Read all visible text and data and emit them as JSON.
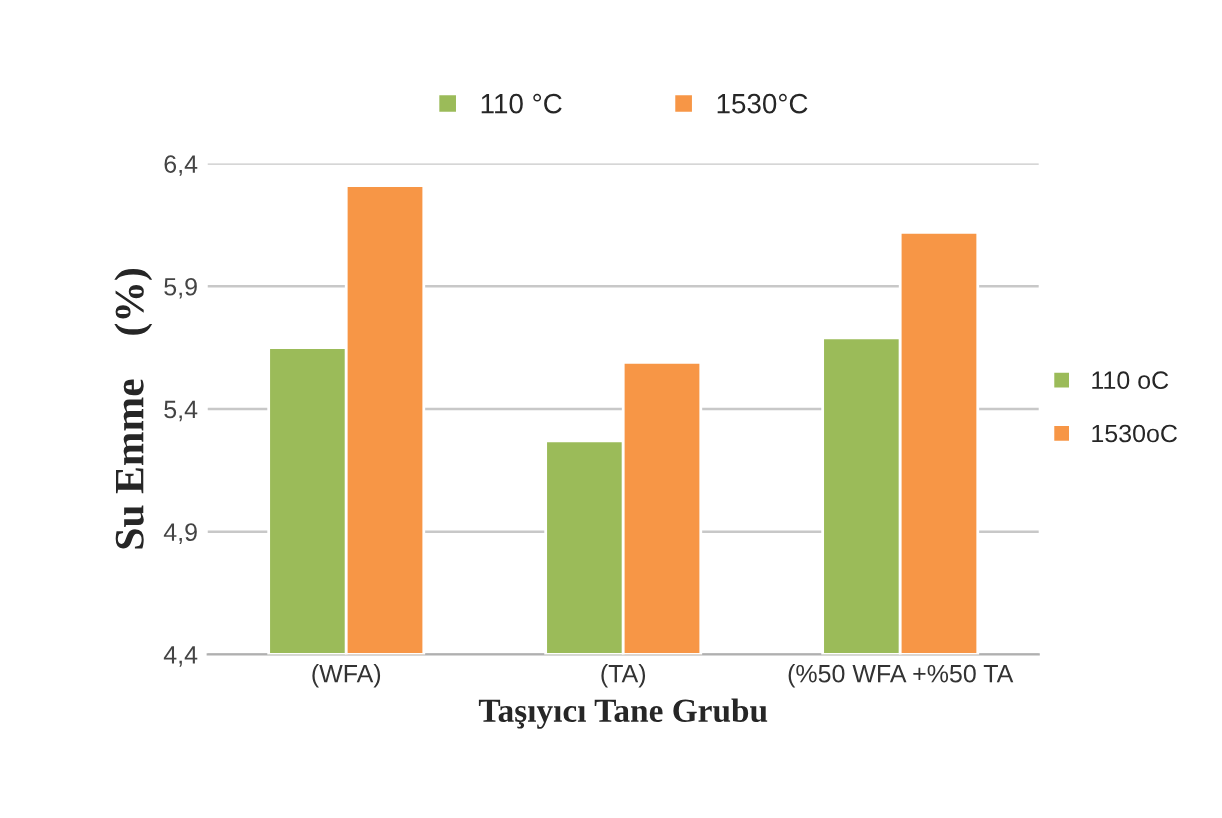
{
  "chart_data": {
    "type": "bar",
    "xlabel": "Taşıyıcı Tane Grubu",
    "ylabel": "Su Emme    (%)",
    "categories": [
      "(WFA)",
      "(TA)",
      "(%50 WFA +%50 TA"
    ],
    "series": [
      {
        "name": "110 °C",
        "color": "#9bbb59",
        "values": [
          5.65,
          5.27,
          5.69
        ]
      },
      {
        "name": "1530°C",
        "color": "#f79646",
        "values": [
          6.31,
          5.59,
          6.12
        ]
      }
    ],
    "ylim": [
      4.4,
      6.4
    ],
    "yticks": [
      {
        "value": 4.4,
        "label": "4,4"
      },
      {
        "value": 4.9,
        "label": "4,9"
      },
      {
        "value": 5.4,
        "label": "5,4"
      },
      {
        "value": 5.9,
        "label": "5,9"
      },
      {
        "value": 6.4,
        "label": "6,4"
      }
    ],
    "grid": "y",
    "legend": "top",
    "annotations": [
      "110 oC",
      "1530oC"
    ]
  }
}
